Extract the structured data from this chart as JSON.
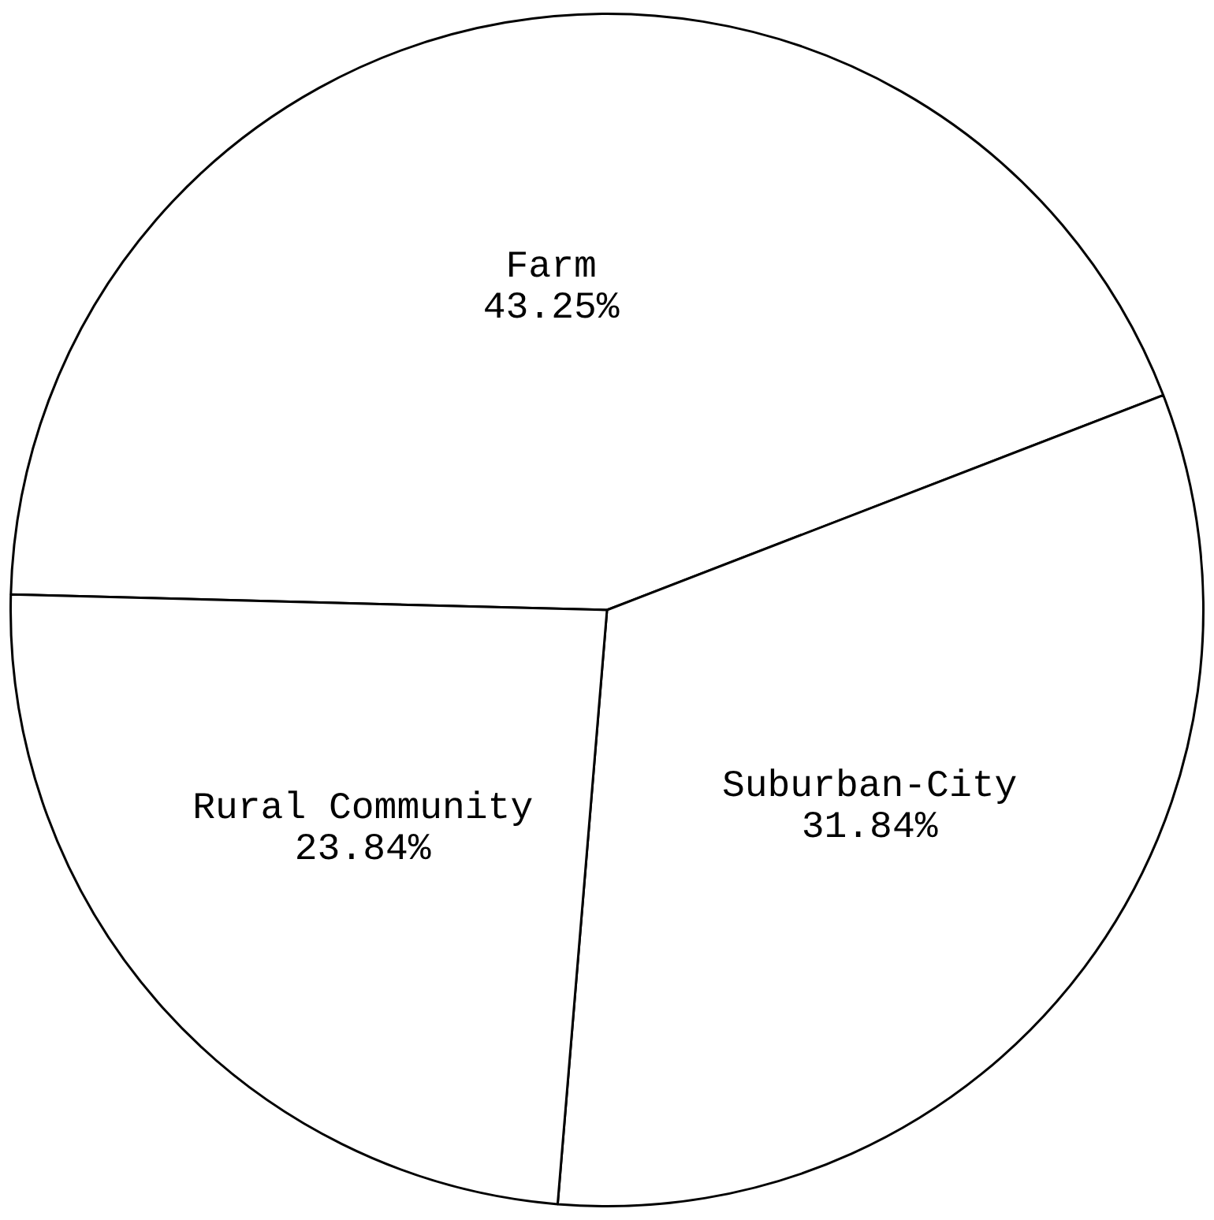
{
  "chart_data": {
    "type": "pie",
    "categories": [
      "Farm",
      "Suburban-City",
      "Rural Community"
    ],
    "values": [
      43.25,
      31.84,
      23.84
    ],
    "value_labels": [
      "43.25%",
      "31.84%",
      "23.84%"
    ],
    "colors": [
      "#ffffff",
      "#ffffff",
      "#ffffff"
    ],
    "legend": false
  }
}
